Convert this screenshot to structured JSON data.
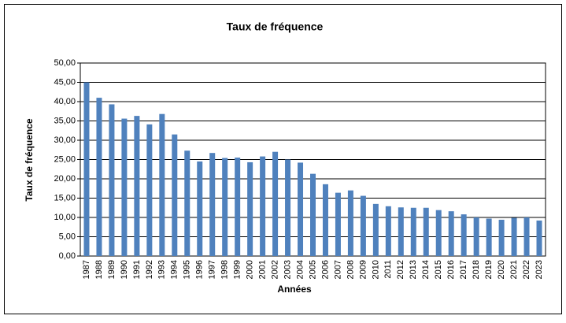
{
  "chart_data": {
    "type": "bar",
    "title": "Taux de fréquence",
    "x_label": "Années",
    "y_label": "Taux de fréquence",
    "categories": [
      "1987",
      "1988",
      "1989",
      "1990",
      "1991",
      "1992",
      "1993",
      "1994",
      "1995",
      "1996",
      "1997",
      "1998",
      "1999",
      "2000",
      "2001",
      "2002",
      "2003",
      "2004",
      "2005",
      "2006",
      "2007",
      "2008",
      "2009",
      "2010",
      "2011",
      "2012",
      "2013",
      "2014",
      "2015",
      "2016",
      "2017",
      "2018",
      "2019",
      "2020",
      "2021",
      "2022",
      "2023"
    ],
    "values": [
      45.0,
      41.0,
      39.3,
      35.6,
      36.3,
      34.1,
      36.8,
      31.5,
      27.3,
      24.5,
      26.7,
      25.4,
      25.5,
      24.3,
      25.8,
      27.0,
      25.0,
      24.2,
      21.3,
      18.6,
      16.4,
      17.0,
      15.6,
      13.5,
      12.9,
      12.6,
      12.5,
      12.5,
      11.9,
      11.6,
      10.8,
      10.0,
      9.7,
      9.4,
      9.9,
      10.0,
      9.2
    ],
    "color": "#4f81bd",
    "ylim": [
      0,
      50
    ],
    "yticks": [
      {
        "value": 0,
        "label": "0,00"
      },
      {
        "value": 5,
        "label": "5,00"
      },
      {
        "value": 10,
        "label": "10,00"
      },
      {
        "value": 15,
        "label": "15,00"
      },
      {
        "value": 20,
        "label": "20,00"
      },
      {
        "value": 25,
        "label": "25,00"
      },
      {
        "value": 30,
        "label": "30,00"
      },
      {
        "value": 35,
        "label": "35,00"
      },
      {
        "value": 40,
        "label": "40,00"
      },
      {
        "value": 45,
        "label": "45,00"
      },
      {
        "value": 50,
        "label": "50,00"
      }
    ],
    "grid": true
  }
}
